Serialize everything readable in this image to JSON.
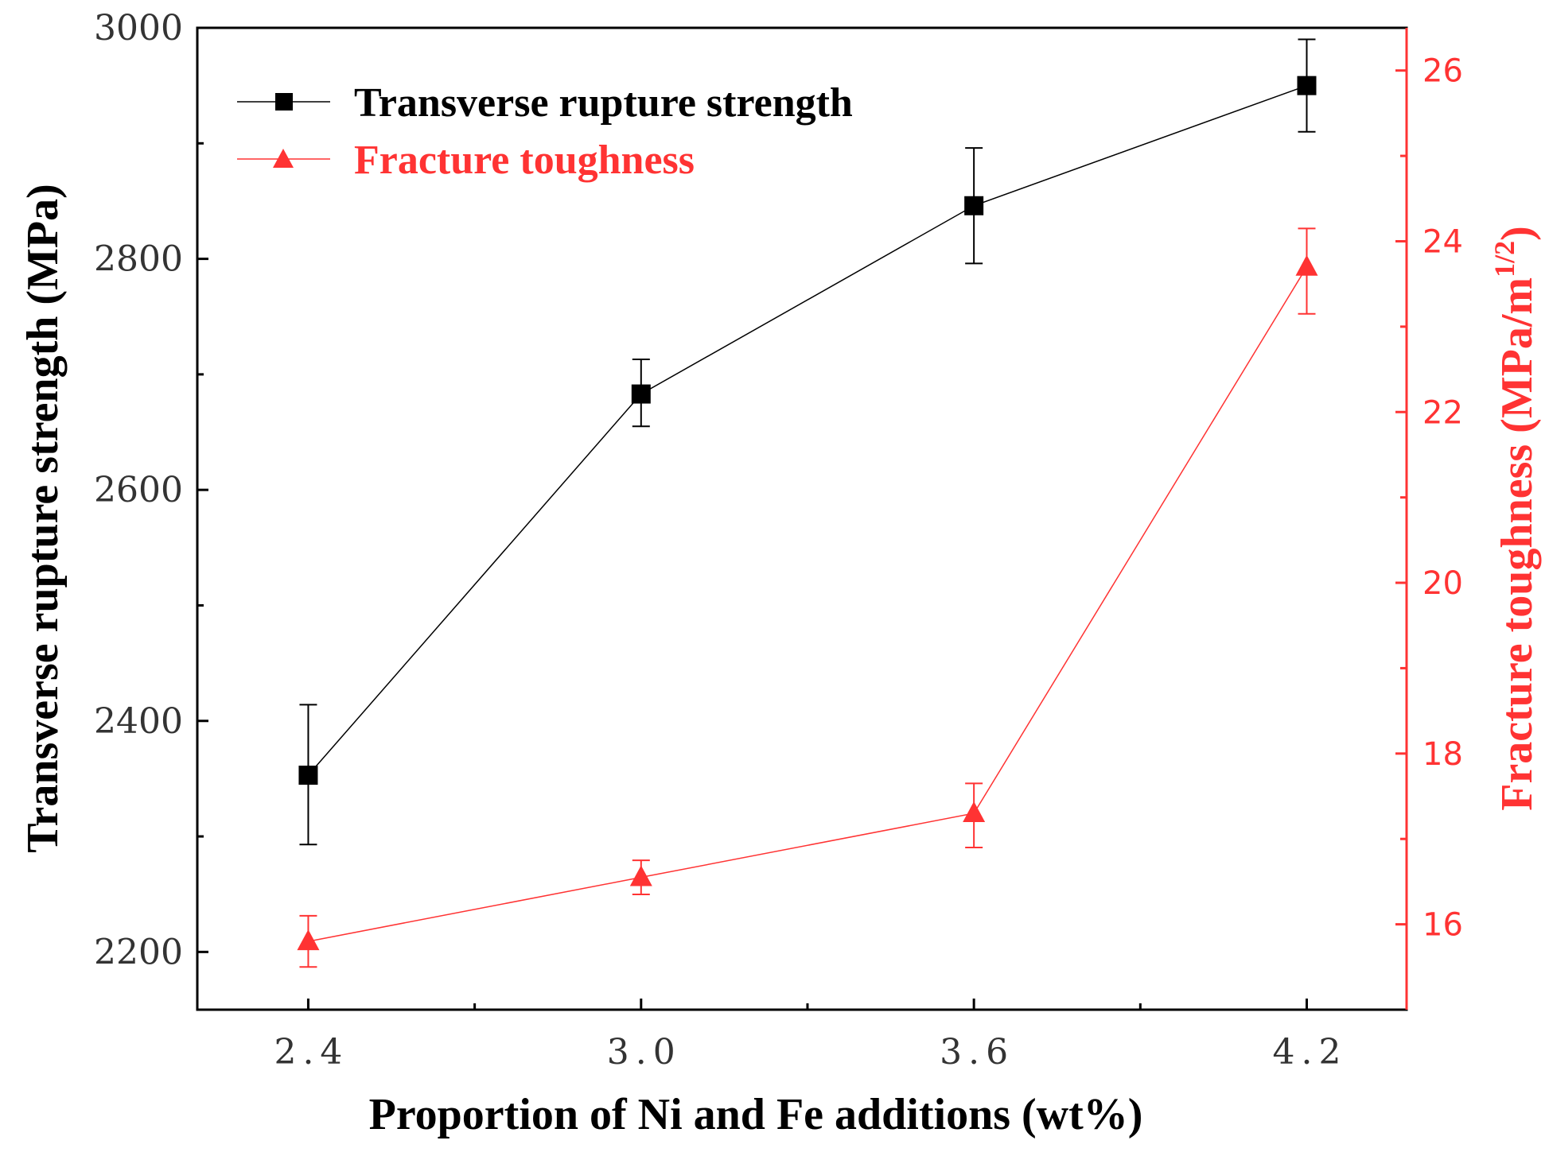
{
  "chart_data": {
    "type": "line",
    "xlabel": "Proportion of Ni and Fe additions (wt%)",
    "categories": [
      "2.4",
      "3.0",
      "3.6",
      "4.2"
    ],
    "x": [
      2.4,
      3.0,
      3.6,
      4.2
    ],
    "xlim": [
      2.2,
      4.38
    ],
    "y_left": {
      "label": "Transverse rupture strength (MPa)",
      "lim": [
        2150,
        3000
      ],
      "ticks": [
        2200,
        2400,
        2600,
        2800,
        3000
      ],
      "tick_labels": [
        "2200",
        "2400",
        "2600",
        "2800",
        "3000"
      ],
      "color": "#000000"
    },
    "y_right": {
      "label_main": "Fracture toughness (MPa/m",
      "label_sup": "1/2",
      "label_close": ")",
      "lim": [
        15.0,
        26.5
      ],
      "ticks": [
        16,
        18,
        20,
        22,
        24,
        26
      ],
      "tick_labels": [
        "16",
        "18",
        "20",
        "22",
        "24",
        "26"
      ],
      "color": "#ff3333"
    },
    "series": [
      {
        "name": "Transverse rupture strength",
        "axis": "left",
        "marker": "square",
        "color": "#000000",
        "values": [
          2353,
          2683,
          2846,
          2950
        ],
        "err_upper": [
          2414,
          2713,
          2896,
          2990
        ],
        "err_lower": [
          2293,
          2655,
          2796,
          2910
        ]
      },
      {
        "name": "Fracture toughness",
        "axis": "right",
        "marker": "triangle",
        "color": "#ff3333",
        "values": [
          15.8,
          16.55,
          17.3,
          23.7
        ],
        "err_upper": [
          16.1,
          16.75,
          17.65,
          24.15
        ],
        "err_lower": [
          15.5,
          16.35,
          16.9,
          23.15
        ]
      }
    ],
    "legend_position": "top-left",
    "grid": false
  }
}
